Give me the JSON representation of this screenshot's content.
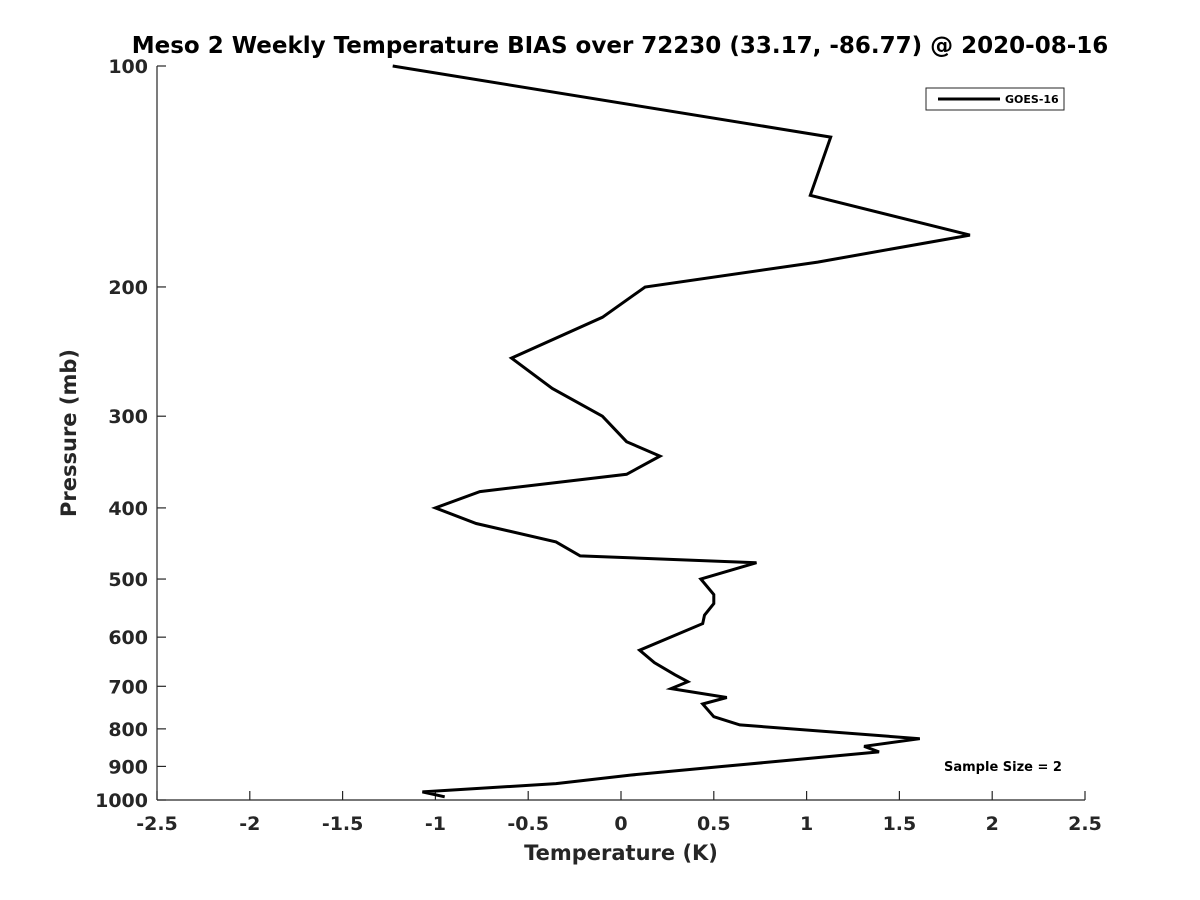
{
  "chart_data": {
    "type": "line",
    "title": "Meso 2 Weekly Temperature BIAS over 72230 (33.17, -86.77) @ 2020-08-16",
    "xlabel": "Temperature (K)",
    "ylabel": "Pressure (mb)",
    "xlim": [
      -2.5,
      2.5
    ],
    "ylim": [
      100,
      1000
    ],
    "y_scale": "log",
    "y_reversed": true,
    "x_ticks": [
      -2.5,
      -2,
      -1.5,
      -1,
      -0.5,
      0,
      0.5,
      1,
      1.5,
      2,
      2.5
    ],
    "x_tick_labels": [
      "-2.5",
      "-2",
      "-1.5",
      "-1",
      "-0.5",
      "0",
      "0.5",
      "1",
      "1.5",
      "2",
      "2.5"
    ],
    "y_ticks": [
      100,
      200,
      300,
      400,
      500,
      600,
      700,
      800,
      900,
      1000
    ],
    "y_tick_labels": [
      "100",
      "200",
      "300",
      "400",
      "500",
      "600",
      "700",
      "800",
      "900",
      "1000"
    ],
    "grid": false,
    "legend_position": "top-right",
    "series": [
      {
        "name": "GOES-16",
        "color": "#000000",
        "points": [
          [
            -1.23,
            100
          ],
          [
            1.13,
            125
          ],
          [
            1.02,
            150
          ],
          [
            1.88,
            170
          ],
          [
            1.06,
            185
          ],
          [
            0.13,
            200
          ],
          [
            -0.1,
            220
          ],
          [
            -0.59,
            250
          ],
          [
            -0.37,
            275
          ],
          [
            -0.1,
            300
          ],
          [
            0.03,
            325
          ],
          [
            0.21,
            340
          ],
          [
            0.03,
            360
          ],
          [
            -0.76,
            380
          ],
          [
            -1.0,
            400
          ],
          [
            -0.78,
            420
          ],
          [
            -0.35,
            445
          ],
          [
            -0.22,
            465
          ],
          [
            0.73,
            475
          ],
          [
            0.43,
            500
          ],
          [
            0.5,
            525
          ],
          [
            0.5,
            540
          ],
          [
            0.45,
            560
          ],
          [
            0.44,
            575
          ],
          [
            0.1,
            625
          ],
          [
            0.18,
            650
          ],
          [
            0.29,
            675
          ],
          [
            0.36,
            690
          ],
          [
            0.27,
            705
          ],
          [
            0.57,
            725
          ],
          [
            0.44,
            740
          ],
          [
            0.5,
            770
          ],
          [
            0.64,
            790
          ],
          [
            1.61,
            825
          ],
          [
            1.31,
            845
          ],
          [
            1.39,
            860
          ],
          [
            0.55,
            900
          ],
          [
            0.05,
            925
          ],
          [
            -0.35,
            950
          ],
          [
            -1.07,
            975
          ],
          [
            -0.95,
            990
          ]
        ]
      }
    ],
    "annotations": [
      {
        "text": "Sample Size = 2",
        "position": "bottom-right"
      }
    ]
  }
}
